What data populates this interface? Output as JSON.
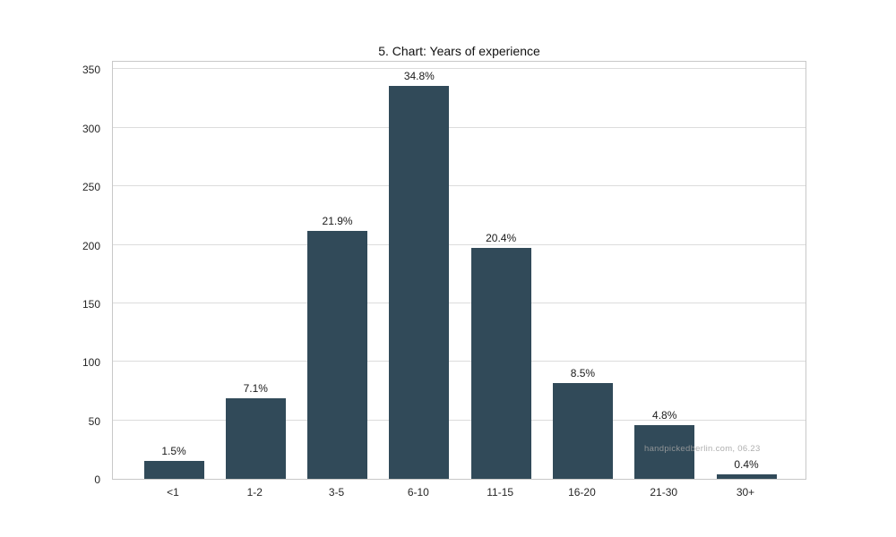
{
  "title": "5. Chart: Years of experience",
  "watermark": "handpickedberlin.com, 06.23",
  "colors": {
    "bar": "#314a59",
    "grid": "#dcdcdc",
    "plot_border": "#c8c8c8",
    "tick_text": "#262626",
    "title_text": "#111111",
    "watermark_text": "#a0a0a0",
    "background": "#ffffff"
  },
  "chart_data": {
    "type": "bar",
    "title": "5. Chart: Years of experience",
    "categories": [
      "<1",
      "1-2",
      "3-5",
      "6-10",
      "11-15",
      "16-20",
      "21-30",
      "30+"
    ],
    "values": [
      15,
      69,
      212,
      336,
      197,
      82,
      46,
      4
    ],
    "bar_labels": [
      "1.5%",
      "7.1%",
      "21.9%",
      "34.8%",
      "20.4%",
      "8.5%",
      "4.8%",
      "0.4%"
    ],
    "xlabel": "",
    "ylabel": "",
    "ylim": [
      0,
      358
    ],
    "yticks": [
      0,
      50,
      100,
      150,
      200,
      250,
      300,
      350
    ],
    "grid": "horizontal",
    "legend": "none"
  }
}
